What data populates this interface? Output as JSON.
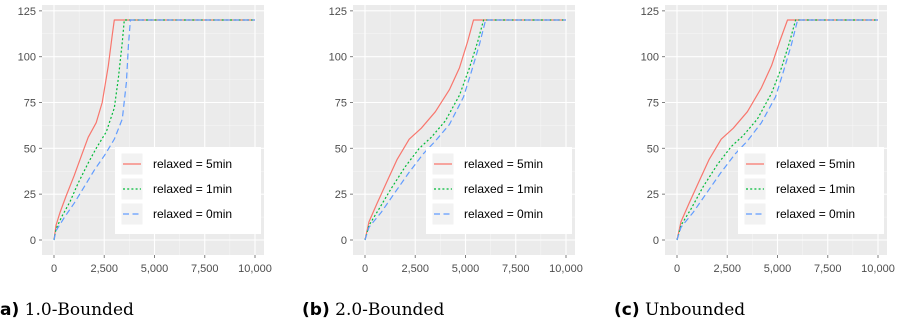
{
  "colors": {
    "panel_bg": "#ebebeb",
    "grid": "#ffffff",
    "legend_bg": "#ffffff",
    "legend_key_bg": "#f2f2f2",
    "relaxed_5min": "#f8766d",
    "relaxed_1min": "#00ba38",
    "relaxed_0min": "#619cff"
  },
  "chart_data": [
    {
      "type": "line",
      "caption_tag": "a)",
      "caption": "1.0-Bounded",
      "xlim": [
        0,
        10000
      ],
      "ylim": [
        0,
        125
      ],
      "x_ticks": [
        0,
        2500,
        5000,
        7500,
        10000
      ],
      "x_tick_labels": [
        "0",
        "2,500",
        "5,000",
        "7,500",
        "10,000"
      ],
      "y_ticks": [
        0,
        25,
        50,
        75,
        100,
        125
      ],
      "y_tick_labels": [
        "0",
        "25",
        "50",
        "75",
        "100",
        "125"
      ],
      "grid": true,
      "legend_position": "bottom-right",
      "series": [
        {
          "name": "relaxed = 5min",
          "color": "#f8766d",
          "dash": "solid",
          "x": [
            0,
            100,
            300,
            600,
            1000,
            1400,
            1700,
            2100,
            2400,
            2700,
            2900,
            3000,
            10000
          ],
          "y": [
            0,
            8,
            15,
            24,
            35,
            47,
            56,
            64,
            75,
            95,
            112,
            120,
            120
          ]
        },
        {
          "name": "relaxed = 1min",
          "color": "#00ba38",
          "dash": "dotted",
          "x": [
            0,
            100,
            400,
            800,
            1200,
            1700,
            2100,
            2600,
            3000,
            3200,
            3400,
            3500,
            10000
          ],
          "y": [
            0,
            6,
            13,
            21,
            31,
            42,
            50,
            59,
            72,
            88,
            108,
            120,
            120
          ]
        },
        {
          "name": "relaxed = 0min",
          "color": "#619cff",
          "dash": "dashed",
          "x": [
            0,
            100,
            500,
            1000,
            1500,
            2000,
            2500,
            3000,
            3400,
            3600,
            3700,
            3800,
            10000
          ],
          "y": [
            0,
            5,
            12,
            20,
            29,
            38,
            46,
            55,
            66,
            86,
            106,
            120,
            120
          ]
        }
      ]
    },
    {
      "type": "line",
      "caption_tag": "(b)",
      "caption": "2.0-Bounded",
      "xlim": [
        0,
        10000
      ],
      "ylim": [
        0,
        125
      ],
      "x_ticks": [
        0,
        2500,
        5000,
        7500,
        10000
      ],
      "x_tick_labels": [
        "0",
        "2,500",
        "5,000",
        "7,500",
        "10,000"
      ],
      "y_ticks": [
        0,
        25,
        50,
        75,
        100,
        125
      ],
      "y_tick_labels": [
        "0",
        "25",
        "50",
        "75",
        "100",
        "125"
      ],
      "grid": true,
      "legend_position": "bottom-right",
      "series": [
        {
          "name": "relaxed = 5min",
          "color": "#f8766d",
          "dash": "solid",
          "x": [
            0,
            200,
            600,
            1100,
            1600,
            2200,
            2800,
            3500,
            4200,
            4700,
            5100,
            5400,
            10000
          ],
          "y": [
            0,
            10,
            20,
            32,
            44,
            55,
            61,
            70,
            82,
            94,
            108,
            120,
            120
          ]
        },
        {
          "name": "relaxed = 1min",
          "color": "#00ba38",
          "dash": "dotted",
          "x": [
            0,
            200,
            700,
            1300,
            2000,
            2700,
            3300,
            4000,
            4700,
            5200,
            5600,
            5900,
            10000
          ],
          "y": [
            0,
            8,
            17,
            28,
            40,
            50,
            56,
            65,
            79,
            94,
            108,
            120,
            120
          ]
        },
        {
          "name": "relaxed = 0min",
          "color": "#619cff",
          "dash": "dashed",
          "x": [
            0,
            200,
            800,
            1500,
            2200,
            2900,
            3500,
            4200,
            4900,
            5300,
            5700,
            6000,
            10000
          ],
          "y": [
            0,
            7,
            15,
            26,
            37,
            47,
            54,
            63,
            78,
            92,
            107,
            120,
            120
          ]
        }
      ]
    },
    {
      "type": "line",
      "caption_tag": "(c)",
      "caption": "Unbounded",
      "xlim": [
        0,
        10000
      ],
      "ylim": [
        0,
        125
      ],
      "x_ticks": [
        0,
        2500,
        5000,
        7500,
        10000
      ],
      "x_tick_labels": [
        "0",
        "2,500",
        "5,000",
        "7,500",
        "10,000"
      ],
      "y_ticks": [
        0,
        25,
        50,
        75,
        100,
        125
      ],
      "y_tick_labels": [
        "0",
        "25",
        "50",
        "75",
        "100",
        "125"
      ],
      "grid": true,
      "legend_position": "bottom-right",
      "series": [
        {
          "name": "relaxed = 5min",
          "color": "#f8766d",
          "dash": "solid",
          "x": [
            0,
            200,
            600,
            1100,
            1600,
            2200,
            2800,
            3500,
            4200,
            4700,
            5100,
            5500,
            10000
          ],
          "y": [
            0,
            10,
            20,
            32,
            44,
            55,
            61,
            70,
            83,
            95,
            108,
            120,
            120
          ]
        },
        {
          "name": "relaxed = 1min",
          "color": "#00ba38",
          "dash": "dotted",
          "x": [
            0,
            200,
            700,
            1300,
            2000,
            2700,
            3300,
            4000,
            4700,
            5200,
            5600,
            5900,
            10000
          ],
          "y": [
            0,
            8,
            17,
            29,
            41,
            51,
            57,
            66,
            80,
            94,
            108,
            120,
            120
          ]
        },
        {
          "name": "relaxed = 0min",
          "color": "#619cff",
          "dash": "dashed",
          "x": [
            0,
            200,
            800,
            1500,
            2200,
            2900,
            3500,
            4200,
            4900,
            5300,
            5700,
            6000,
            10000
          ],
          "y": [
            0,
            7,
            15,
            26,
            37,
            47,
            54,
            64,
            78,
            92,
            107,
            120,
            120
          ]
        }
      ]
    }
  ]
}
